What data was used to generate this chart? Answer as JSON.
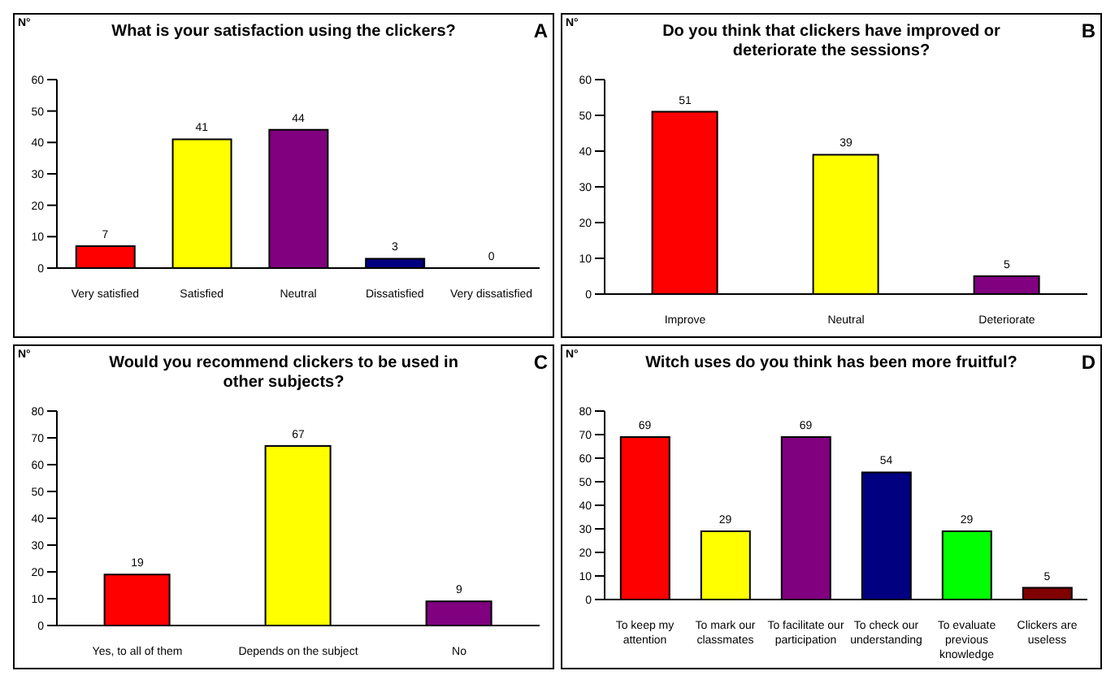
{
  "chart_data": [
    {
      "type": "bar",
      "title": "What is your satisfaction using the clickers?",
      "ylabel": "N°",
      "annotations": [
        "A"
      ],
      "categories": [
        "Very satisfied",
        "Satisfied",
        "Neutral",
        "Dissatisfied",
        "Very dissatisfied"
      ],
      "values": [
        7,
        41,
        44,
        3,
        0
      ],
      "colors": [
        "#ff0000",
        "#ffff00",
        "#800080",
        "#000080",
        "#ff0000"
      ],
      "ylim": [
        0,
        60
      ],
      "yticks": [
        0,
        10,
        20,
        30,
        40,
        50,
        60
      ],
      "data_labels": true,
      "grid": false,
      "legend": false
    },
    {
      "type": "bar",
      "title": "Do you think that clickers have improved or deteriorate the sessions?",
      "ylabel": "N°",
      "annotations": [
        "B"
      ],
      "categories": [
        "Improve",
        "Neutral",
        "Deteriorate"
      ],
      "values": [
        51,
        39,
        5
      ],
      "colors": [
        "#ff0000",
        "#ffff00",
        "#800080"
      ],
      "ylim": [
        0,
        60
      ],
      "yticks": [
        0,
        10,
        20,
        30,
        40,
        50,
        60
      ],
      "data_labels": true,
      "grid": false,
      "legend": false
    },
    {
      "type": "bar",
      "title": "Would you recommend clickers to be used in other subjects?",
      "ylabel": "N°",
      "annotations": [
        "C"
      ],
      "categories": [
        "Yes, to all of them",
        "Depends on the subject",
        "No"
      ],
      "values": [
        19,
        67,
        9
      ],
      "colors": [
        "#ff0000",
        "#ffff00",
        "#800080"
      ],
      "ylim": [
        0,
        80
      ],
      "yticks": [
        0,
        10,
        20,
        30,
        40,
        50,
        60,
        70,
        80
      ],
      "data_labels": true,
      "grid": false,
      "legend": false
    },
    {
      "type": "bar",
      "title": "Witch uses do you think has been more fruitful?",
      "ylabel": "N°",
      "annotations": [
        "D"
      ],
      "categories": [
        "To keep my attention",
        "To mark our classmates",
        "To facilitate our participation",
        "To check our understanding",
        "To evaluate previous knowledge",
        "Clickers are useless"
      ],
      "values": [
        69,
        29,
        69,
        54,
        29,
        5
      ],
      "colors": [
        "#ff0000",
        "#ffff00",
        "#800080",
        "#000080",
        "#00ff00",
        "#800000"
      ],
      "ylim": [
        0,
        80
      ],
      "yticks": [
        0,
        10,
        20,
        30,
        40,
        50,
        60,
        70,
        80
      ],
      "data_labels": true,
      "grid": false,
      "legend": false
    }
  ]
}
